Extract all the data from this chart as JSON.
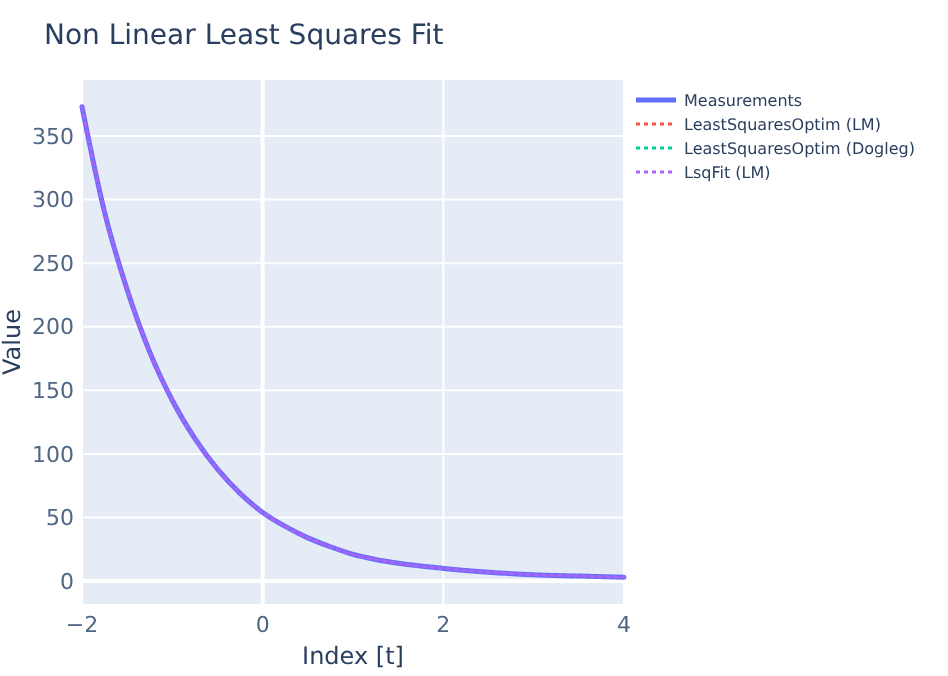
{
  "chart_data": {
    "type": "line",
    "title": "Non Linear Least Squares Fit",
    "xlabel": "Index [t]",
    "ylabel": "Value",
    "x": [
      -2,
      -1.75,
      -1.5,
      -1.25,
      -1,
      -0.75,
      -0.5,
      -0.25,
      0,
      0.25,
      0.5,
      0.75,
      1,
      1.25,
      1.5,
      2,
      2.5,
      3,
      3.5,
      4
    ],
    "series": [
      {
        "name": "Measurements",
        "color": "#636efa",
        "line_style": "solid",
        "values": [
          373,
          290,
          229,
          180,
          142,
          112,
          88,
          69,
          54,
          43,
          34,
          27,
          21,
          17,
          14,
          10,
          7,
          5,
          4,
          3
        ]
      },
      {
        "name": "LeastSquaresOptim (LM)",
        "color": "#ef553b",
        "line_style": "dotted",
        "values": [
          null,
          null,
          null,
          null,
          null,
          null,
          null,
          null,
          null,
          null,
          null,
          null,
          null,
          null,
          null,
          null,
          null,
          null,
          null,
          null
        ]
      },
      {
        "name": "LeastSquaresOptim (Dogleg)",
        "color": "#00cc96",
        "line_style": "dotted",
        "values": [
          null,
          null,
          null,
          null,
          null,
          null,
          null,
          null,
          null,
          null,
          null,
          null,
          null,
          null,
          null,
          null,
          null,
          null,
          null,
          null
        ]
      },
      {
        "name": "LsqFit (LM)",
        "color": "#ab63fa",
        "line_style": "dotted",
        "values": [
          373,
          290,
          229,
          180,
          142,
          112,
          88,
          69,
          54,
          43,
          34,
          27,
          21,
          17,
          14,
          10,
          7,
          5,
          4,
          3
        ]
      }
    ],
    "xlim": [
      -2,
      4
    ],
    "xticks": [
      {
        "value": -2,
        "label": "−2"
      },
      0,
      2,
      4
    ],
    "ylim": [
      -18,
      394
    ],
    "yticks": [
      0,
      50,
      100,
      150,
      200,
      250,
      300,
      350
    ],
    "grid": true,
    "legend": "top right"
  }
}
